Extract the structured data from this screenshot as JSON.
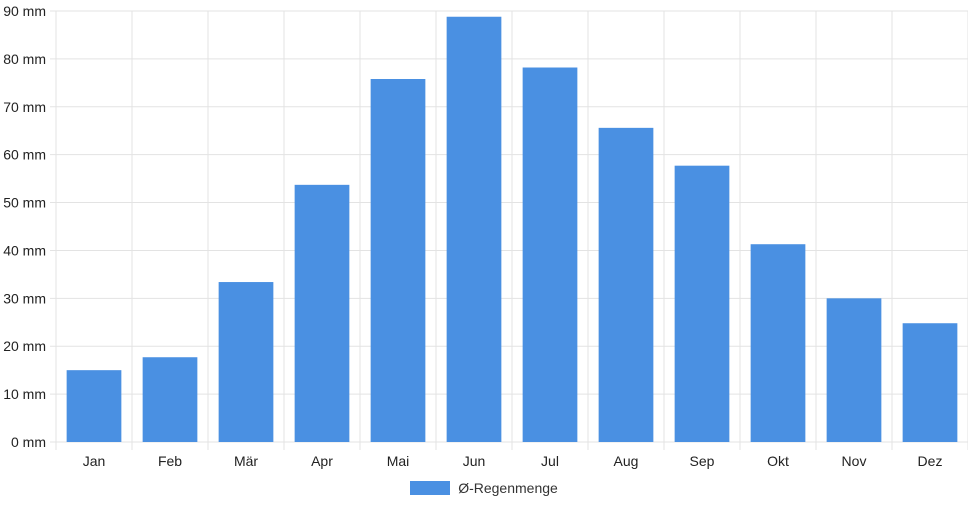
{
  "chart_data": {
    "type": "bar",
    "categories": [
      "Jan",
      "Feb",
      "Mär",
      "Apr",
      "Mai",
      "Jun",
      "Jul",
      "Aug",
      "Sep",
      "Okt",
      "Nov",
      "Dez"
    ],
    "series": [
      {
        "name": "Ø-Regenmenge",
        "values": [
          15,
          17.7,
          33.4,
          53.7,
          75.8,
          88.8,
          78.2,
          65.6,
          57.7,
          41.3,
          30,
          24.8
        ]
      }
    ],
    "y_ticks": [
      "0 mm",
      "10 mm",
      "20 mm",
      "30 mm",
      "40 mm",
      "50 mm",
      "60 mm",
      "70 mm",
      "80 mm",
      "90 mm"
    ],
    "ylim": [
      0,
      90
    ],
    "grid": true,
    "legend_position": "bottom",
    "colors": {
      "bar": "#4a90e2",
      "grid": "#e3e3e3"
    }
  }
}
